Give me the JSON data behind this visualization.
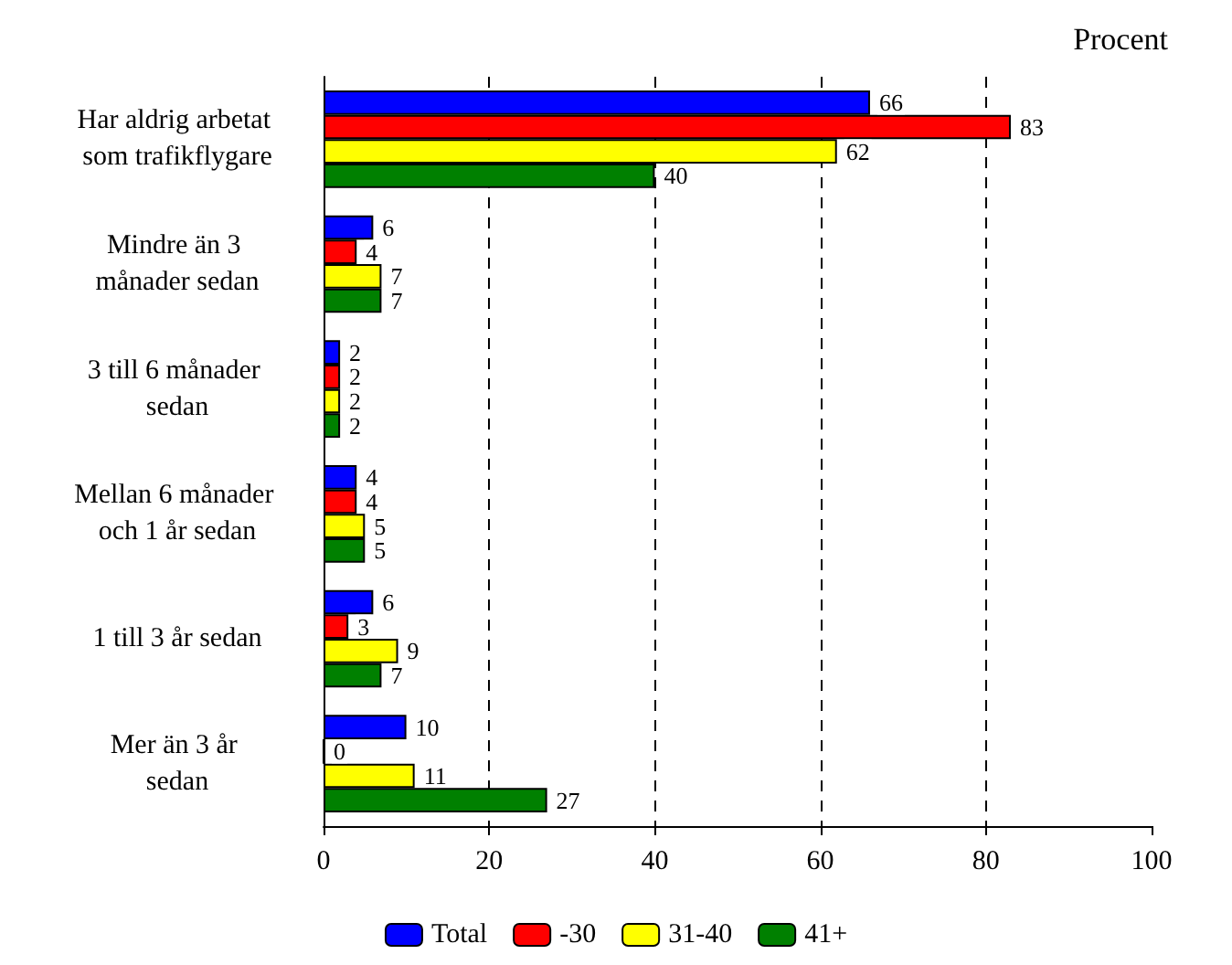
{
  "chart_data": {
    "type": "bar",
    "orientation": "horizontal",
    "xlabel": "Procent",
    "categories": [
      "Har aldrig arbetat som trafikflygare",
      "Mindre än 3 månader sedan",
      "3 till 6 månader sedan",
      "Mellan 6 månader och 1 år sedan",
      "1 till 3 år sedan",
      "Mer än 3 år sedan"
    ],
    "series": [
      {
        "name": "Total",
        "color": "#0000ff",
        "values": [
          66,
          6,
          2,
          4,
          6,
          10
        ]
      },
      {
        "name": "-30",
        "color": "#ff0000",
        "values": [
          83,
          4,
          2,
          4,
          3,
          0
        ]
      },
      {
        "name": "31-40",
        "color": "#ffff00",
        "values": [
          62,
          7,
          2,
          5,
          9,
          11
        ]
      },
      {
        "name": "41+",
        "color": "#008000",
        "values": [
          40,
          7,
          2,
          5,
          7,
          27
        ]
      }
    ],
    "xlim": [
      0,
      100
    ],
    "xticks": [
      0,
      20,
      40,
      60,
      80,
      100
    ],
    "grid": "x",
    "legend": "bottom",
    "data_labels": true
  }
}
